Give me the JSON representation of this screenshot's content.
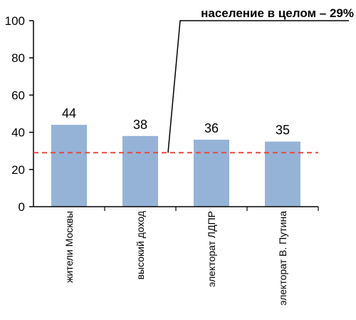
{
  "chart_data": {
    "type": "bar",
    "categories": [
      "жители Москвы",
      "высокий доход",
      "электорат ЛДПР",
      "электорат В. Путина"
    ],
    "values": [
      44,
      38,
      36,
      35
    ],
    "value_labels": [
      "44",
      "38",
      "36",
      "35"
    ],
    "ylim": [
      0,
      100
    ],
    "yticks": [
      0,
      20,
      40,
      60,
      80,
      100
    ],
    "ytick_labels": [
      "0",
      "20",
      "40",
      "60",
      "80",
      "100"
    ],
    "grid": false,
    "reference_line": {
      "value": 29,
      "label": "население в целом – 29%",
      "color": "#e8483f"
    },
    "bar_color": "#95b3d7"
  }
}
